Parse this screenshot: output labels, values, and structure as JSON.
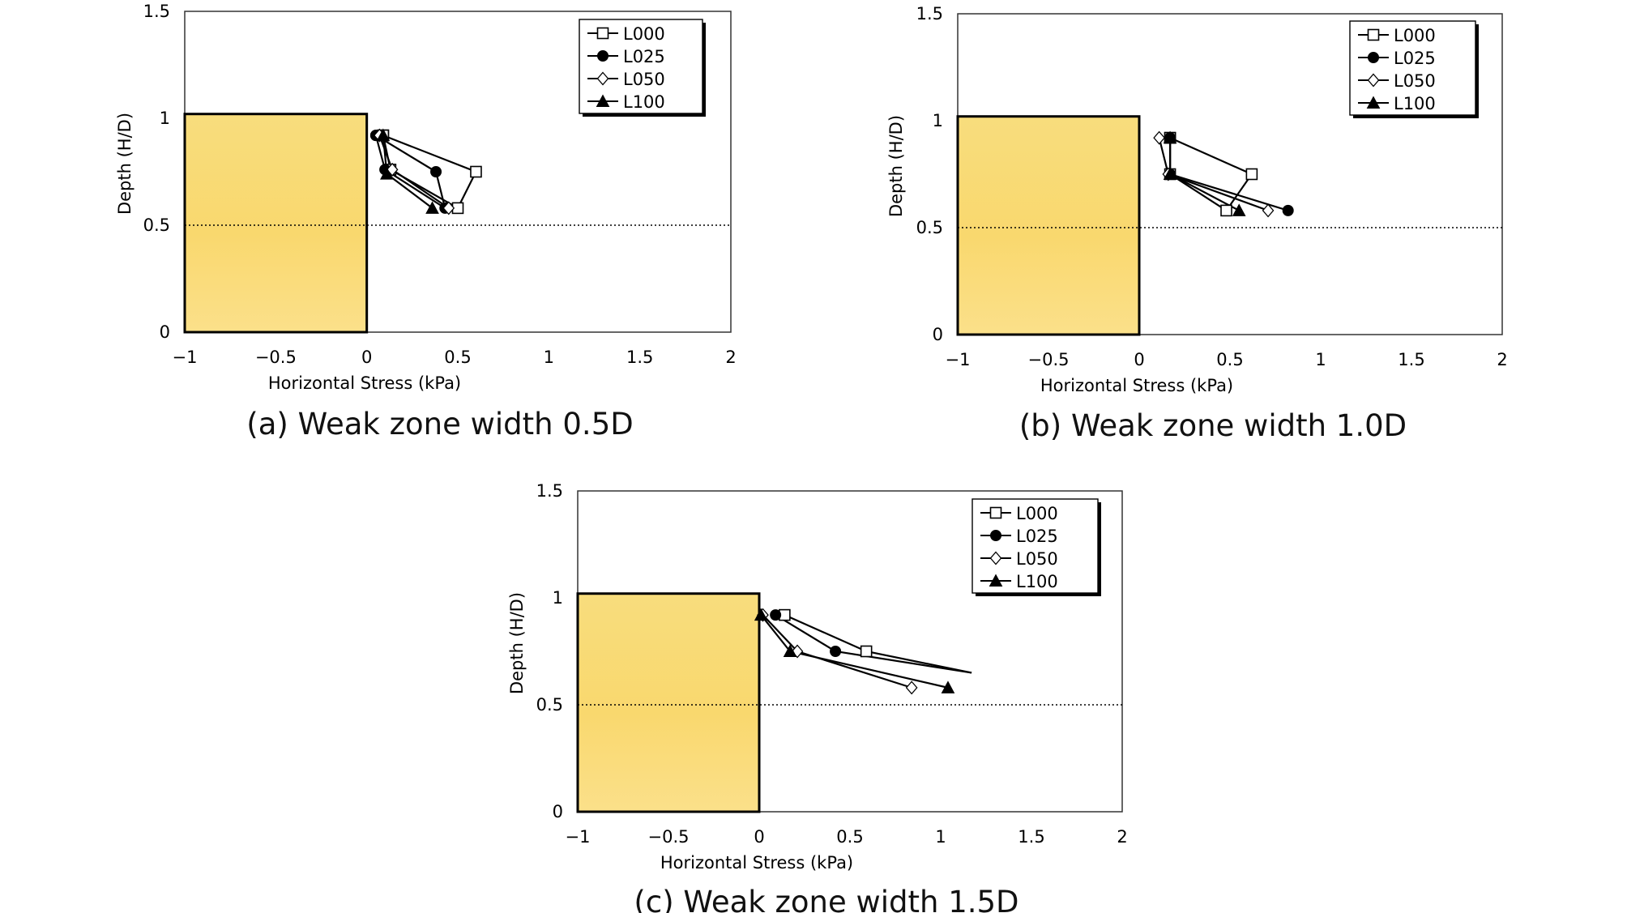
{
  "chart_data": [
    {
      "type": "line",
      "panel": "a",
      "caption": "(a) Weak zone width 0.5D",
      "xlabel": "Horizontal Stress (kPa)",
      "ylabel": "Depth (H/D)",
      "xlim": [
        -1,
        2
      ],
      "ylim": [
        0,
        1.5
      ],
      "xticks": [
        "−1",
        "−0.5",
        "0",
        "0.5",
        "1",
        "1.5",
        "2"
      ],
      "yticks": [
        "0",
        "0.5",
        "1",
        "1.5"
      ],
      "legend_position": "top-right",
      "weak_zone": {
        "x": [
          -1,
          0
        ],
        "y": [
          0,
          1.02
        ],
        "color": "#f9d86e"
      },
      "reference_line_y": 0.5,
      "series": [
        {
          "name": "L000",
          "marker": "open-square",
          "points": [
            [
              0.09,
              0.92
            ],
            [
              0.6,
              0.75
            ],
            [
              0.5,
              0.58
            ],
            [
              0.13,
              0.76
            ],
            [
              0.09,
              0.92
            ]
          ]
        },
        {
          "name": "L025",
          "marker": "filled-circle",
          "points": [
            [
              0.05,
              0.92
            ],
            [
              0.38,
              0.75
            ],
            [
              0.43,
              0.58
            ],
            [
              0.1,
              0.76
            ],
            [
              0.05,
              0.92
            ]
          ]
        },
        {
          "name": "L050",
          "marker": "open-diamond",
          "points": [
            [
              0.07,
              0.92
            ],
            [
              0.14,
              0.76
            ],
            [
              0.45,
              0.58
            ]
          ]
        },
        {
          "name": "L100",
          "marker": "filled-triangle",
          "points": [
            [
              0.09,
              0.92
            ],
            [
              0.11,
              0.74
            ],
            [
              0.36,
              0.58
            ]
          ]
        }
      ]
    },
    {
      "type": "line",
      "panel": "b",
      "caption": "(b) Weak zone width 1.0D",
      "xlabel": "Horizontal Stress (kPa)",
      "ylabel": "Depth (H/D)",
      "xlim": [
        -1,
        2
      ],
      "ylim": [
        0,
        1.5
      ],
      "xticks": [
        "−1",
        "−0.5",
        "0",
        "0.5",
        "1",
        "1.5",
        "2"
      ],
      "yticks": [
        "0",
        "0.5",
        "1",
        "1.5"
      ],
      "legend_position": "top-right",
      "weak_zone": {
        "x": [
          -1,
          0
        ],
        "y": [
          0,
          1.02
        ],
        "color": "#f9d86e"
      },
      "reference_line_y": 0.5,
      "series": [
        {
          "name": "L000",
          "marker": "open-square",
          "points": [
            [
              0.17,
              0.92
            ],
            [
              0.62,
              0.75
            ],
            [
              0.48,
              0.58
            ],
            [
              0.17,
              0.75
            ],
            [
              0.17,
              0.92
            ]
          ]
        },
        {
          "name": "L025",
          "marker": "filled-circle",
          "points": [
            [
              0.17,
              0.92
            ],
            [
              0.17,
              0.75
            ],
            [
              0.82,
              0.58
            ]
          ]
        },
        {
          "name": "L050",
          "marker": "open-diamond",
          "points": [
            [
              0.11,
              0.92
            ],
            [
              0.16,
              0.75
            ],
            [
              0.71,
              0.58
            ]
          ]
        },
        {
          "name": "L100",
          "marker": "filled-triangle",
          "points": [
            [
              0.17,
              0.92
            ],
            [
              0.17,
              0.75
            ],
            [
              0.55,
              0.58
            ]
          ]
        }
      ]
    },
    {
      "type": "line",
      "panel": "c",
      "caption": "(c) Weak zone width 1.5D",
      "xlabel": "Horizontal Stress (kPa)",
      "ylabel": "Depth (H/D)",
      "xlim": [
        -1,
        2
      ],
      "ylim": [
        0,
        1.5
      ],
      "xticks": [
        "−1",
        "−0.5",
        "0",
        "0.5",
        "1",
        "1.5",
        "2"
      ],
      "yticks": [
        "0",
        "0.5",
        "1",
        "1.5"
      ],
      "legend_position": "top-right",
      "weak_zone": {
        "x": [
          -1,
          0
        ],
        "y": [
          0,
          1.02
        ],
        "color": "#f9d86e"
      },
      "reference_line_y": 0.5,
      "series": [
        {
          "name": "L000",
          "marker": "open-square",
          "points": [
            [
              0.14,
              0.92
            ],
            [
              0.59,
              0.75
            ],
            [
              1.17,
              0.65
            ]
          ]
        },
        {
          "name": "L025",
          "marker": "filled-circle",
          "points": [
            [
              0.09,
              0.92
            ],
            [
              0.42,
              0.75
            ],
            [
              1.17,
              0.65
            ]
          ]
        },
        {
          "name": "L050",
          "marker": "open-diamond",
          "points": [
            [
              0.02,
              0.92
            ],
            [
              0.21,
              0.75
            ],
            [
              0.84,
              0.58
            ]
          ]
        },
        {
          "name": "L100",
          "marker": "filled-triangle",
          "points": [
            [
              0.01,
              0.92
            ],
            [
              0.17,
              0.75
            ],
            [
              1.04,
              0.58
            ]
          ]
        }
      ]
    }
  ]
}
